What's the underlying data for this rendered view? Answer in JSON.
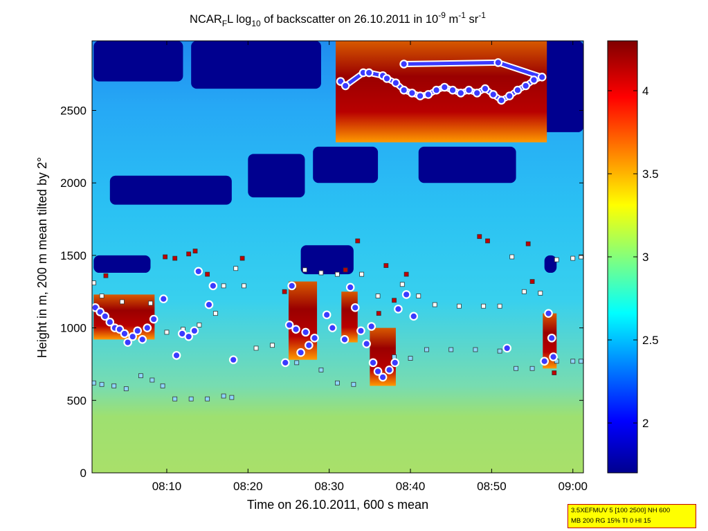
{
  "chart_data": {
    "type": "heatmap",
    "title": {
      "prefix": "NCAR",
      "sub1": "F",
      "mid1": "L log",
      "sub2": "10",
      "mid2": " of backscatter on 26.10.2011 in 10",
      "sup1": "-9",
      "mid3": " m",
      "sup2": "-1",
      "mid4": " sr",
      "sup3": "-1"
    },
    "xlabel": "Time on 26.10.2011, 600 s mean",
    "ylabel": "Height in m, 200 m mean tilted by 2°",
    "x_ticks": [
      "08:10",
      "08:20",
      "08:30",
      "08:40",
      "08:50",
      "09:00"
    ],
    "x_tick_minutes": [
      10,
      20,
      30,
      40,
      50,
      60
    ],
    "x_range_minutes": [
      0.8,
      61.3
    ],
    "y_ticks": [
      0,
      500,
      1000,
      1500,
      2000,
      2500
    ],
    "y_range": [
      0,
      2980
    ],
    "colorbar": {
      "ticks": [
        2,
        2.5,
        3,
        3.5,
        4
      ],
      "tick_labels": [
        "2",
        "2.5",
        "3",
        "3.5",
        "4"
      ],
      "range": [
        1.7,
        4.3
      ],
      "colormap": "jet"
    },
    "cloud_base_series": [
      {
        "marker": "circle",
        "color": "#3a3aff",
        "edge": "#ffffff",
        "points": [
          [
            1.2,
            1140
          ],
          [
            1.8,
            1110
          ],
          [
            2.4,
            1080
          ],
          [
            3,
            1040
          ],
          [
            3.6,
            1000
          ],
          [
            4.2,
            990
          ],
          [
            4.8,
            960
          ],
          [
            5.2,
            900
          ],
          [
            5.8,
            940
          ],
          [
            6.4,
            980
          ],
          [
            7,
            920
          ],
          [
            7.6,
            1000
          ],
          [
            8.4,
            1060
          ],
          [
            9.6,
            1200
          ],
          [
            11.2,
            810
          ],
          [
            11.9,
            960
          ],
          [
            12.7,
            940
          ],
          [
            13.4,
            980
          ],
          [
            13.9,
            1390
          ],
          [
            15.2,
            1160
          ],
          [
            15.7,
            1290
          ],
          [
            18.2,
            780
          ],
          [
            24.6,
            760
          ],
          [
            25.1,
            1020
          ],
          [
            25.4,
            1290
          ],
          [
            25.9,
            990
          ],
          [
            26.5,
            830
          ],
          [
            27.1,
            970
          ],
          [
            27.5,
            880
          ],
          [
            28.2,
            930
          ],
          [
            29.7,
            1090
          ],
          [
            30.4,
            1000
          ],
          [
            31.9,
            920
          ],
          [
            32.6,
            1280
          ],
          [
            33.2,
            1140
          ],
          [
            33.9,
            980
          ],
          [
            34.6,
            890
          ],
          [
            35.2,
            1010
          ],
          [
            35.4,
            760
          ],
          [
            36,
            700
          ],
          [
            36.6,
            660
          ],
          [
            37.4,
            710
          ],
          [
            38.1,
            760
          ],
          [
            38.5,
            1130
          ],
          [
            39.5,
            1230
          ],
          [
            40.4,
            1080
          ],
          [
            51.9,
            860
          ],
          [
            56.5,
            770
          ],
          [
            57,
            1100
          ],
          [
            57.4,
            930
          ],
          [
            57.6,
            800
          ]
        ]
      },
      {
        "marker": "circle",
        "color": "#3a3aff",
        "edge": "#ffffff",
        "points": [
          [
            31.4,
            2700
          ],
          [
            32,
            2670
          ],
          [
            34.2,
            2760
          ],
          [
            34.9,
            2760
          ],
          [
            36.6,
            2740
          ],
          [
            37.1,
            2720
          ],
          [
            38.2,
            2690
          ],
          [
            39.2,
            2640
          ],
          [
            40.2,
            2620
          ],
          [
            41.2,
            2600
          ],
          [
            42.2,
            2610
          ],
          [
            43.2,
            2640
          ],
          [
            44.2,
            2660
          ],
          [
            45.2,
            2640
          ],
          [
            46.2,
            2620
          ],
          [
            47.2,
            2640
          ],
          [
            48.2,
            2620
          ],
          [
            49.2,
            2650
          ],
          [
            50.2,
            2610
          ],
          [
            51.2,
            2570
          ],
          [
            52.2,
            2600
          ],
          [
            53.2,
            2640
          ],
          [
            54.2,
            2670
          ],
          [
            55.2,
            2710
          ],
          [
            56.2,
            2730
          ],
          [
            50.8,
            2830
          ],
          [
            39.2,
            2820
          ]
        ]
      }
    ],
    "layer_top_series": [
      {
        "marker": "square",
        "color": "#ffffff",
        "points": [
          [
            1,
            1310
          ],
          [
            2,
            1220
          ],
          [
            4.5,
            1180
          ],
          [
            8,
            1170
          ],
          [
            10,
            970
          ],
          [
            12,
            990
          ],
          [
            14,
            1020
          ],
          [
            16,
            1100
          ],
          [
            17,
            1290
          ],
          [
            18.5,
            1410
          ],
          [
            19.5,
            1290
          ],
          [
            21,
            860
          ],
          [
            23,
            880
          ],
          [
            27,
            1400
          ],
          [
            29,
            1380
          ],
          [
            31,
            1370
          ],
          [
            34,
            1370
          ],
          [
            36,
            1220
          ],
          [
            39,
            1300
          ],
          [
            41,
            1220
          ],
          [
            43,
            1160
          ],
          [
            46,
            1150
          ],
          [
            49,
            1150
          ],
          [
            51,
            1150
          ],
          [
            52.5,
            1490
          ],
          [
            54,
            1250
          ],
          [
            56,
            1240
          ],
          [
            58,
            1470
          ],
          [
            60,
            1480
          ],
          [
            61,
            1490
          ]
        ]
      },
      {
        "marker": "square",
        "color": "#8ed6ff",
        "points": [
          [
            1,
            620
          ],
          [
            2,
            610
          ],
          [
            3.5,
            600
          ],
          [
            5,
            580
          ],
          [
            6.8,
            670
          ],
          [
            8.2,
            640
          ],
          [
            9.5,
            600
          ],
          [
            11,
            510
          ],
          [
            13,
            510
          ],
          [
            15,
            510
          ],
          [
            17,
            530
          ],
          [
            18,
            520
          ],
          [
            26,
            760
          ],
          [
            29,
            710
          ],
          [
            31,
            620
          ],
          [
            33,
            610
          ],
          [
            38,
            800
          ],
          [
            40,
            790
          ],
          [
            42,
            850
          ],
          [
            45,
            850
          ],
          [
            48,
            850
          ],
          [
            51,
            840
          ],
          [
            53,
            720
          ],
          [
            55,
            720
          ],
          [
            58,
            770
          ],
          [
            60,
            770
          ],
          [
            61,
            770
          ]
        ]
      },
      {
        "marker": "square",
        "color": "#c00000",
        "points": [
          [
            2.5,
            1360
          ],
          [
            9.8,
            1490
          ],
          [
            11,
            1480
          ],
          [
            12.7,
            1510
          ],
          [
            13.5,
            1530
          ],
          [
            15,
            1370
          ],
          [
            19.3,
            1480
          ],
          [
            24.5,
            1250
          ],
          [
            25.6,
            1280
          ],
          [
            32,
            1400
          ],
          [
            33.5,
            1600
          ],
          [
            36.1,
            1100
          ],
          [
            37,
            1430
          ],
          [
            38,
            1190
          ],
          [
            39.5,
            1370
          ],
          [
            48.5,
            1630
          ],
          [
            49.5,
            1600
          ],
          [
            54.5,
            1580
          ],
          [
            55,
            1320
          ],
          [
            57.7,
            690
          ]
        ]
      }
    ],
    "cloud_bands": [
      {
        "t0": 30.8,
        "t1": 56.8,
        "h0": 2280,
        "h1": 2980
      },
      {
        "t0": 1.0,
        "t1": 8.5,
        "h0": 920,
        "h1": 1230
      },
      {
        "t0": 25.0,
        "t1": 28.5,
        "h0": 780,
        "h1": 1320
      },
      {
        "t0": 31.5,
        "t1": 33.5,
        "h0": 900,
        "h1": 1250
      },
      {
        "t0": 35.0,
        "t1": 38.2,
        "h0": 600,
        "h1": 1000
      },
      {
        "t0": 56.3,
        "t1": 58.0,
        "h0": 720,
        "h1": 1100
      }
    ],
    "clear_patches": [
      {
        "t0": 1.0,
        "t1": 12.0,
        "h0": 2700,
        "h1": 2980
      },
      {
        "t0": 13.0,
        "t1": 29.0,
        "h0": 2650,
        "h1": 2980
      },
      {
        "t0": 3.0,
        "t1": 18.0,
        "h0": 1850,
        "h1": 2050
      },
      {
        "t0": 20.0,
        "t1": 27.0,
        "h0": 1900,
        "h1": 2200
      },
      {
        "t0": 28.0,
        "t1": 36.0,
        "h0": 2000,
        "h1": 2250
      },
      {
        "t0": 41.0,
        "t1": 53.0,
        "h0": 2000,
        "h1": 2250
      },
      {
        "t0": 56.0,
        "t1": 61.3,
        "h0": 2350,
        "h1": 2980
      },
      {
        "t0": 1.0,
        "t1": 8.0,
        "h0": 1380,
        "h1": 1500
      },
      {
        "t0": 26.5,
        "t1": 33.0,
        "h0": 1370,
        "h1": 1570
      },
      {
        "t0": 56.5,
        "t1": 58.0,
        "h0": 1380,
        "h1": 1500
      }
    ]
  },
  "info_box": {
    "line1": "3.5XEFMUV 5 [100 2500] NH 600",
    "line2": "MB 200 RG 15% TI 0 HI 15"
  }
}
